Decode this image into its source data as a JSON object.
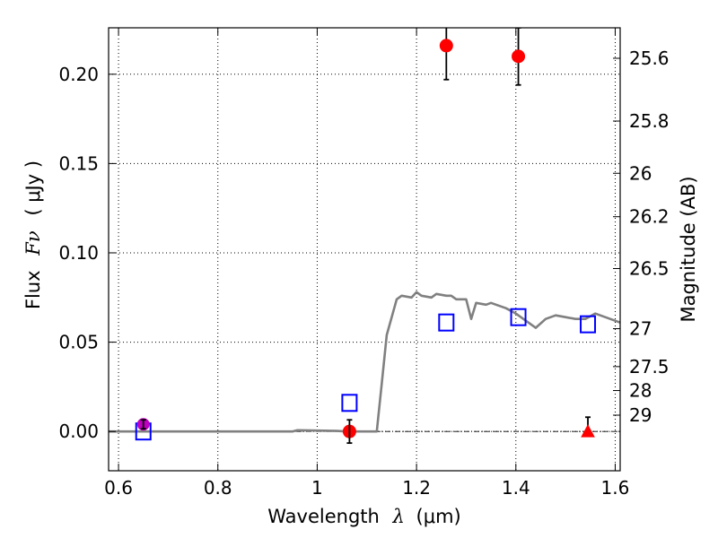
{
  "chart_data": {
    "type": "scatter",
    "title": "",
    "xlabel": "Wavelength",
    "xlabel_symbol": "λ",
    "xlabel_unit": "(μm)",
    "ylabel": "Flux",
    "ylabel_symbol": "Fν",
    "ylabel_unit": "( μJy )",
    "y2label": "Magnitude (AB)",
    "xlim": [
      0.58,
      1.61
    ],
    "ylim": [
      -0.022,
      0.226
    ],
    "grid": true,
    "x_ticks": [
      0.6,
      0.8,
      1.0,
      1.2,
      1.4,
      1.6
    ],
    "x_tick_labels": [
      "0.6",
      "0.8",
      "1",
      "1.2",
      "1.4",
      "1.6"
    ],
    "y_ticks": [
      0.0,
      0.05,
      0.1,
      0.15,
      0.2
    ],
    "y_tick_labels": [
      "0.00",
      "0.05",
      "0.10",
      "0.15",
      "0.20"
    ],
    "mag_ticks": [
      {
        "label": "25.6",
        "mag": 25.6
      },
      {
        "label": "25.8",
        "mag": 25.8
      },
      {
        "label": "26",
        "mag": 26.0
      },
      {
        "label": "26.2",
        "mag": 26.2
      },
      {
        "label": "26.5",
        "mag": 26.5
      },
      {
        "label": "27",
        "mag": 27.0
      },
      {
        "label": "27.5",
        "mag": 27.5
      },
      {
        "label": "28",
        "mag": 28.0
      },
      {
        "label": "29",
        "mag": 29.0
      }
    ],
    "template": {
      "color": "#808080",
      "x": [
        0.58,
        0.95,
        0.96,
        1.0,
        1.04,
        1.06,
        1.08,
        1.12,
        1.13,
        1.14,
        1.16,
        1.17,
        1.19,
        1.2,
        1.21,
        1.23,
        1.24,
        1.26,
        1.27,
        1.28,
        1.29,
        1.3,
        1.31,
        1.32,
        1.34,
        1.35,
        1.36,
        1.38,
        1.4,
        1.42,
        1.44,
        1.46,
        1.48,
        1.5,
        1.52,
        1.54,
        1.56,
        1.58,
        1.61
      ],
      "y": [
        0.0,
        0.0,
        0.0007,
        0.0005,
        0.0003,
        0.0,
        0.0,
        0.0,
        0.027,
        0.054,
        0.074,
        0.076,
        0.075,
        0.078,
        0.076,
        0.075,
        0.077,
        0.076,
        0.076,
        0.074,
        0.074,
        0.074,
        0.063,
        0.072,
        0.071,
        0.072,
        0.071,
        0.069,
        0.066,
        0.062,
        0.058,
        0.063,
        0.065,
        0.064,
        0.063,
        0.063,
        0.066,
        0.064,
        0.061
      ]
    },
    "model_points": {
      "color": "#0000ff",
      "marker": "open-square",
      "x": [
        0.65,
        1.065,
        1.26,
        1.405,
        1.545
      ],
      "y": [
        0.0,
        0.016,
        0.061,
        0.064,
        0.06
      ]
    },
    "observed_detections": {
      "color": "#ff0000",
      "marker": "circle",
      "x": [
        1.26,
        1.405
      ],
      "y": [
        0.216,
        0.21
      ],
      "yerr": [
        0.019,
        0.016
      ]
    },
    "observed_nondetection": {
      "color": "#ff0000",
      "marker": "circle",
      "x": 1.065,
      "y": 0.0,
      "yerr": 0.0065
    },
    "observed_optical": {
      "color": "#c000c0",
      "marker": "circle",
      "x": 0.65,
      "y": 0.004,
      "yerr": 0.0025
    },
    "upper_limit": {
      "color": "#ff0000",
      "marker": "triangle",
      "x": 1.545,
      "y": 0.0,
      "yerr_top": 0.008
    }
  }
}
